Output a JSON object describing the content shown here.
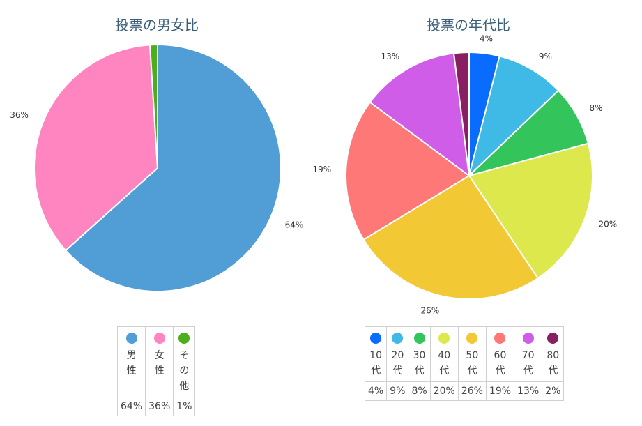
{
  "chart_data": [
    {
      "type": "pie",
      "title": "投票の男女比",
      "labels": [
        "男性",
        "女性",
        "その他"
      ],
      "values": [
        64,
        36,
        1
      ],
      "value_labels": [
        "64%",
        "36%",
        "1%"
      ],
      "colors": [
        "#519dd6",
        "#ff85c0",
        "#4caf1a"
      ],
      "legend": "bottom",
      "legend_labels": [
        [
          "男",
          "性"
        ],
        [
          "女",
          "性"
        ],
        [
          "そ",
          "の",
          "他"
        ]
      ]
    },
    {
      "type": "pie",
      "title": "投票の年代比",
      "labels": [
        "10代",
        "20代",
        "30代",
        "40代",
        "50代",
        "60代",
        "70代",
        "80代"
      ],
      "values": [
        4,
        9,
        8,
        20,
        26,
        19,
        13,
        2
      ],
      "value_labels": [
        "4%",
        "9%",
        "8%",
        "20%",
        "26%",
        "19%",
        "13%",
        "2%"
      ],
      "colors": [
        "#0a6bff",
        "#3fb9e6",
        "#33c45c",
        "#dde84c",
        "#f2c935",
        "#ff7878",
        "#cf5de8",
        "#8a1e62"
      ],
      "legend": "bottom",
      "legend_labels": [
        [
          "10",
          "代"
        ],
        [
          "20",
          "代"
        ],
        [
          "30",
          "代"
        ],
        [
          "40",
          "代"
        ],
        [
          "50",
          "代"
        ],
        [
          "60",
          "代"
        ],
        [
          "70",
          "代"
        ],
        [
          "80",
          "代"
        ]
      ]
    }
  ]
}
